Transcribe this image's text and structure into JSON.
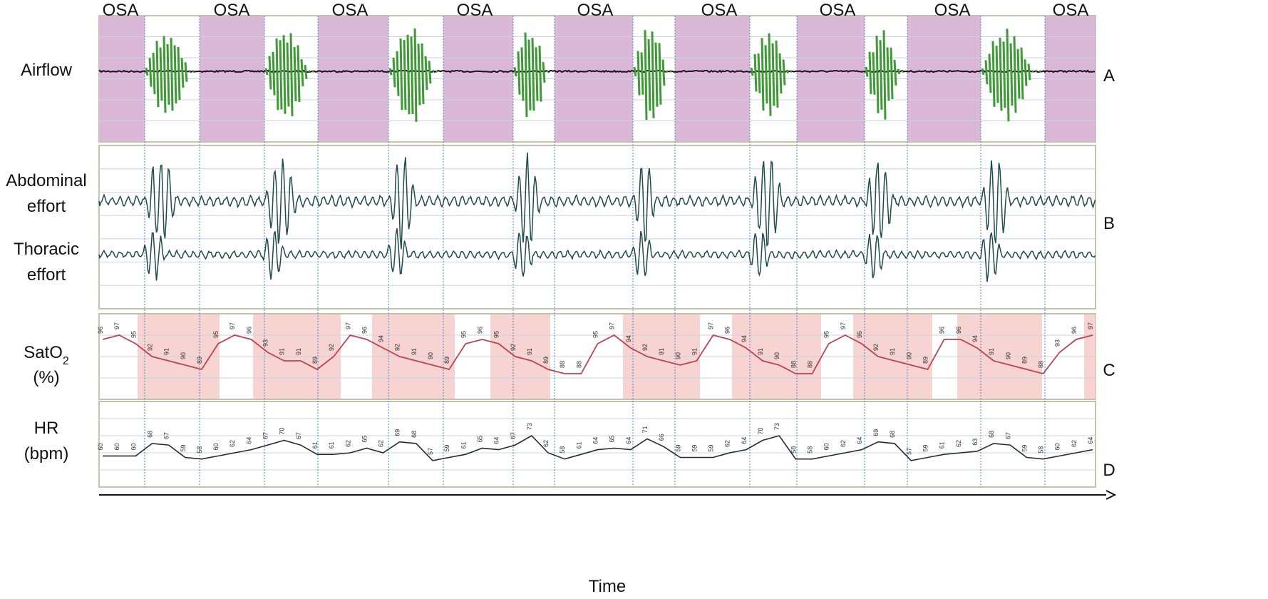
{
  "chart_data": {
    "type": "line",
    "x_axis_label": "Time",
    "event_label": "OSA",
    "event_count": 9,
    "panels": [
      {
        "id": "A",
        "label_lines": [
          "Airflow"
        ],
        "signal": "airflow",
        "shading": "OSA events (apnea, flat airflow)",
        "shade_color": "#dcb8d8",
        "trace_color": "#1e0f1e",
        "breath_color": "#3d9a34"
      },
      {
        "id": "B",
        "label_lines": [
          "Abdominal",
          "effort",
          "Thoracic",
          "effort"
        ],
        "signals": [
          "abdominal effort",
          "thoracic effort"
        ],
        "trace_color": "#1f4a47"
      },
      {
        "id": "C",
        "label_lines": [
          "SatO",
          "2",
          "(%)"
        ],
        "signal": "SatO2",
        "unit": "%",
        "shade_color": "#f7d3d1",
        "trace_color": "#b8454f",
        "recovery_color": "#d24dc8",
        "values": [
          96,
          97,
          95,
          92,
          91,
          90,
          89,
          95,
          97,
          96,
          93,
          91,
          91,
          89,
          92,
          97,
          96,
          94,
          92,
          91,
          90,
          89,
          95,
          96,
          95,
          92,
          91,
          89,
          88,
          88,
          95,
          97,
          94,
          92,
          91,
          90,
          91,
          97,
          96,
          94,
          91,
          90,
          88,
          88,
          95,
          97,
          95,
          92,
          91,
          90,
          89,
          96,
          96,
          94,
          91,
          90,
          89,
          88,
          93,
          96,
          97
        ]
      },
      {
        "id": "D",
        "label_lines": [
          "HR",
          "(bpm)"
        ],
        "signal": "heart rate",
        "unit": "bpm",
        "trace_color": "#2a2a2a",
        "values": [
          60,
          60,
          60,
          68,
          67,
          59,
          58,
          60,
          62,
          64,
          67,
          70,
          67,
          61,
          61,
          62,
          65,
          62,
          69,
          68,
          57,
          59,
          61,
          65,
          64,
          67,
          73,
          62,
          58,
          61,
          64,
          65,
          64,
          71,
          66,
          59,
          59,
          59,
          62,
          64,
          70,
          73,
          58,
          58,
          60,
          62,
          64,
          69,
          68,
          57,
          59,
          61,
          62,
          63,
          68,
          67,
          59,
          58,
          60,
          62,
          64
        ]
      }
    ]
  }
}
